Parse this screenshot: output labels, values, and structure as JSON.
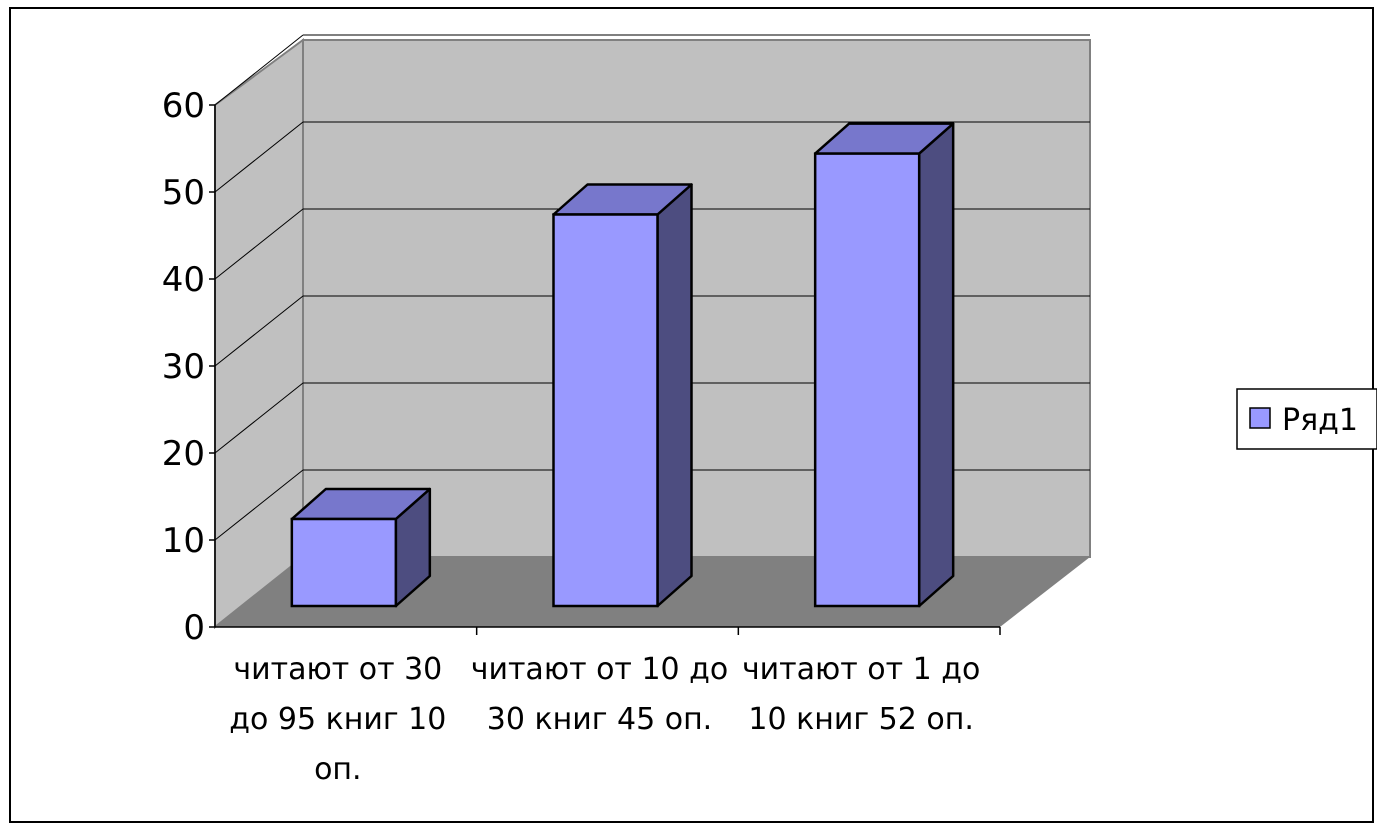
{
  "chart_data": {
    "type": "bar",
    "style": "3d-column",
    "categories": [
      [
        "читают от 30",
        "до 95 книг 10",
        "оп."
      ],
      [
        "читают от 10 до",
        "30 книг 45 оп."
      ],
      [
        "читают от 1 до",
        "10 книг 52 оп."
      ]
    ],
    "series": [
      {
        "name": "Ряд1",
        "values": [
          10,
          45,
          52
        ]
      }
    ],
    "yticks": [
      "0",
      "10",
      "20",
      "30",
      "40",
      "50",
      "60"
    ],
    "ylim": [
      0,
      60
    ],
    "grid": true,
    "legend_position": "right",
    "colors": {
      "bar_front": "#9999ff",
      "bar_top": "#7777cc",
      "bar_side": "#4d4d80",
      "wall": "#c0c0c0",
      "floor": "#808080",
      "gridline": "#000000"
    }
  }
}
